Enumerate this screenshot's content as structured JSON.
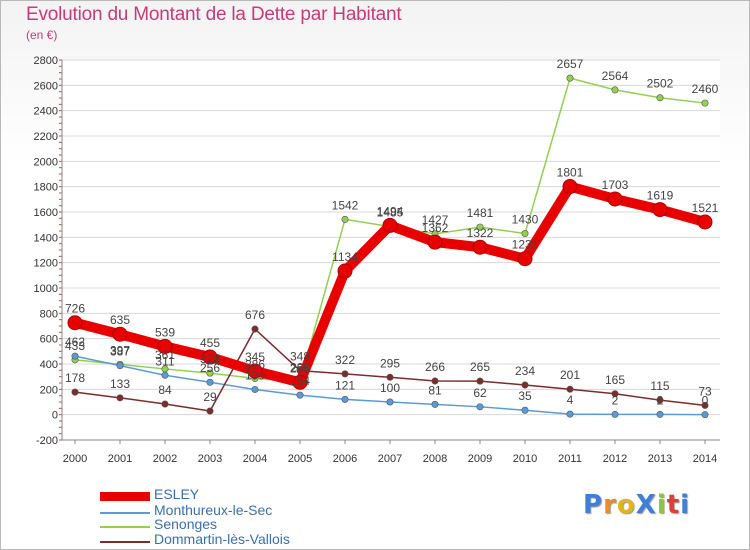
{
  "title": "Evolution du Montant de la Dette par Habitant",
  "subtitle": "(en €)",
  "logo_text": "ProXiti",
  "chart_data": {
    "type": "line",
    "title": "Evolution du Montant de la Dette par Habitant",
    "ylabel": "(en €)",
    "x": [
      2000,
      2001,
      2002,
      2003,
      2004,
      2005,
      2006,
      2007,
      2008,
      2009,
      2010,
      2011,
      2012,
      2013,
      2014
    ],
    "ylim": [
      -200,
      2800
    ],
    "yticks": [
      -200,
      0,
      200,
      400,
      600,
      800,
      1000,
      1200,
      1400,
      1600,
      1800,
      2000,
      2200,
      2400,
      2600,
      2800
    ],
    "grid": "horizontal",
    "legend_position": "bottom-left",
    "series": [
      {
        "name": "ESLEY",
        "color": "#e80000",
        "values": [
          726,
          635,
          539,
          455,
          345,
          255,
          1134,
          1494,
          1362,
          1322,
          1231,
          1801,
          1703,
          1619,
          1521
        ]
      },
      {
        "name": "Monthureux-le-Sec",
        "color": "#5b9bd5",
        "values": [
          462,
          387,
          311,
          256,
          199,
          154,
          121,
          100,
          81,
          62,
          35,
          4,
          2,
          2,
          0
        ]
      },
      {
        "name": "Senonges",
        "color": "#92d050",
        "values": [
          433,
          397,
          361,
          328,
          286,
          261,
          1542,
          1485,
          1427,
          1481,
          1430,
          2657,
          2564,
          2502,
          2460
        ]
      },
      {
        "name": "Dommartin-lès-Vallois",
        "color": "#7b2c2c",
        "values": [
          178,
          133,
          84,
          29,
          676,
          348,
          322,
          295,
          266,
          265,
          234,
          201,
          165,
          115,
          73
        ]
      }
    ],
    "data_labels": [
      {
        "series": 0,
        "text": [
          "726",
          "635",
          "539",
          "455",
          "345",
          "255",
          "1134",
          "1494",
          "1362",
          "1322",
          "1231",
          "1801",
          "1703",
          "1619",
          "1521"
        ]
      },
      {
        "series": 1,
        "text": [
          "462",
          "387",
          "311",
          "256",
          "199",
          "154",
          "121",
          "100",
          "81",
          "62",
          "35",
          "4",
          "2",
          "2",
          "0"
        ]
      },
      {
        "series": 2,
        "text": [
          "433",
          "397",
          "361",
          "328",
          "286",
          "261",
          "1542",
          "1485",
          "1427",
          "1481",
          "1430",
          "2657",
          "2564",
          "2502",
          "2460"
        ]
      },
      {
        "series": 3,
        "text": [
          "178",
          "133",
          "84",
          "29",
          "676",
          "348",
          "322",
          "295",
          "266",
          "265",
          "234",
          "201",
          "165",
          "115",
          "73"
        ]
      }
    ]
  }
}
